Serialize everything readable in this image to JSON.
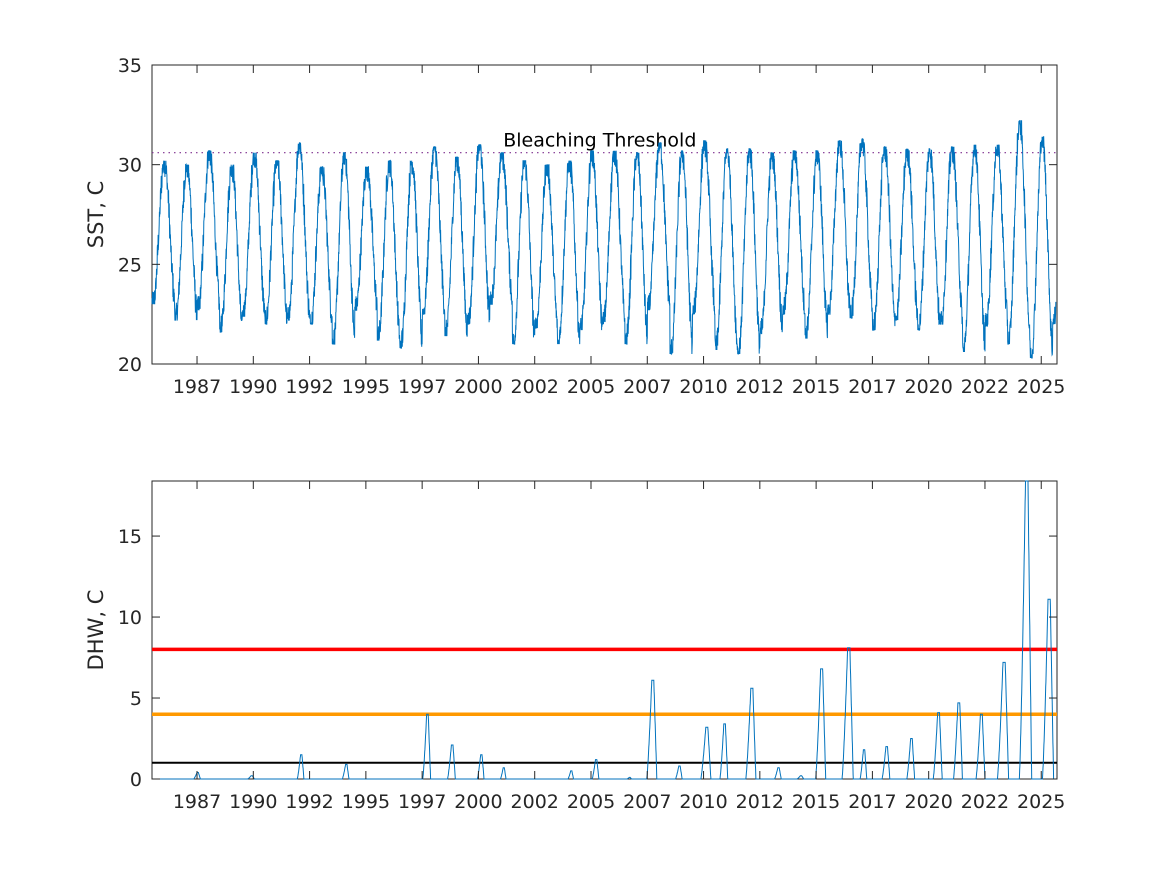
{
  "chart_data": [
    {
      "type": "line",
      "ylabel": "SST, C",
      "xlim": [
        1985.0,
        2025.2
      ],
      "ylim": [
        20,
        35
      ],
      "yticks": [
        20,
        25,
        30,
        35
      ],
      "xtick_labels": [
        "1987",
        "1990",
        "1992",
        "1995",
        "1997",
        "2000",
        "2002",
        "2005",
        "2007",
        "2010",
        "2012",
        "2015",
        "2017",
        "2020",
        "2022",
        "2025"
      ],
      "xtick_values": [
        1987.0,
        1989.5,
        1992.0,
        1994.5,
        1997.0,
        1999.5,
        2002.0,
        2004.5,
        2007.0,
        2009.5,
        2012.0,
        2014.5,
        2017.0,
        2019.5,
        2022.0,
        2024.5
      ],
      "line_color": "#0072BD",
      "threshold": {
        "value": 30.6,
        "label": "Bleaching Threshold",
        "style": "dotted",
        "color": "#7E2F8E"
      },
      "series": [
        {
          "annual_peaks": [
            {
              "year": 1985,
              "max": 30.2
            },
            {
              "year": 1986,
              "max": 30.0
            },
            {
              "year": 1987,
              "max": 30.7
            },
            {
              "year": 1988,
              "max": 30.0
            },
            {
              "year": 1989,
              "max": 30.6
            },
            {
              "year": 1990,
              "max": 30.2
            },
            {
              "year": 1991,
              "max": 31.1
            },
            {
              "year": 1992,
              "max": 29.9
            },
            {
              "year": 1993,
              "max": 30.6
            },
            {
              "year": 1994,
              "max": 29.9
            },
            {
              "year": 1995,
              "max": 30.2
            },
            {
              "year": 1996,
              "max": 30.2
            },
            {
              "year": 1997,
              "max": 30.9
            },
            {
              "year": 1998,
              "max": 30.4
            },
            {
              "year": 1999,
              "max": 31.0
            },
            {
              "year": 2000,
              "max": 30.6
            },
            {
              "year": 2001,
              "max": 30.2
            },
            {
              "year": 2002,
              "max": 30.0
            },
            {
              "year": 2003,
              "max": 30.2
            },
            {
              "year": 2004,
              "max": 30.7
            },
            {
              "year": 2005,
              "max": 30.7
            },
            {
              "year": 2006,
              "max": 30.6
            },
            {
              "year": 2007,
              "max": 31.1
            },
            {
              "year": 2008,
              "max": 30.7
            },
            {
              "year": 2009,
              "max": 31.2
            },
            {
              "year": 2010,
              "max": 30.8
            },
            {
              "year": 2011,
              "max": 30.8
            },
            {
              "year": 2012,
              "max": 30.6
            },
            {
              "year": 2013,
              "max": 30.7
            },
            {
              "year": 2014,
              "max": 30.7
            },
            {
              "year": 2015,
              "max": 31.2
            },
            {
              "year": 2016,
              "max": 31.3
            },
            {
              "year": 2017,
              "max": 30.9
            },
            {
              "year": 2018,
              "max": 30.8
            },
            {
              "year": 2019,
              "max": 30.8
            },
            {
              "year": 2020,
              "max": 30.9
            },
            {
              "year": 2021,
              "max": 31.0
            },
            {
              "year": 2022,
              "max": 31.0
            },
            {
              "year": 2023,
              "max": 32.2
            },
            {
              "year": 2024,
              "max": 31.4
            }
          ],
          "annual_troughs": [
            {
              "year": 1985,
              "min": 23.0
            },
            {
              "year": 1986,
              "min": 22.2
            },
            {
              "year": 1987,
              "min": 22.7
            },
            {
              "year": 1988,
              "min": 21.6
            },
            {
              "year": 1989,
              "min": 22.4
            },
            {
              "year": 1990,
              "min": 22.0
            },
            {
              "year": 1991,
              "min": 22.2
            },
            {
              "year": 1992,
              "min": 22.0
            },
            {
              "year": 1993,
              "min": 21.0
            },
            {
              "year": 1994,
              "min": 22.7
            },
            {
              "year": 1995,
              "min": 21.2
            },
            {
              "year": 1996,
              "min": 20.8
            },
            {
              "year": 1997,
              "min": 22.5
            },
            {
              "year": 1998,
              "min": 21.4
            },
            {
              "year": 1999,
              "min": 22.0
            },
            {
              "year": 2000,
              "min": 23.0
            },
            {
              "year": 2001,
              "min": 21.0
            },
            {
              "year": 2002,
              "min": 21.8
            },
            {
              "year": 2003,
              "min": 21.0
            },
            {
              "year": 2004,
              "min": 21.7
            },
            {
              "year": 2005,
              "min": 22.0
            },
            {
              "year": 2006,
              "min": 21.0
            },
            {
              "year": 2007,
              "min": 22.7
            },
            {
              "year": 2008,
              "min": 20.5
            },
            {
              "year": 2009,
              "min": 22.5
            },
            {
              "year": 2010,
              "min": 20.7
            },
            {
              "year": 2011,
              "min": 20.5
            },
            {
              "year": 2012,
              "min": 21.5
            },
            {
              "year": 2013,
              "min": 22.5
            },
            {
              "year": 2014,
              "min": 21.3
            },
            {
              "year": 2015,
              "min": 22.5
            },
            {
              "year": 2016,
              "min": 22.3
            },
            {
              "year": 2017,
              "min": 21.7
            },
            {
              "year": 2018,
              "min": 22.2
            },
            {
              "year": 2019,
              "min": 21.7
            },
            {
              "year": 2020,
              "min": 22.0
            },
            {
              "year": 2021,
              "min": 20.6
            },
            {
              "year": 2022,
              "min": 21.9
            },
            {
              "year": 2023,
              "min": 21.0
            },
            {
              "year": 2024,
              "min": 20.3
            }
          ]
        }
      ]
    },
    {
      "type": "line",
      "ylabel": "DHW, C",
      "xlim": [
        1985.0,
        2025.2
      ],
      "ylim": [
        0,
        18.4
      ],
      "yticks": [
        0,
        5,
        10,
        15
      ],
      "xtick_labels": [
        "1987",
        "1990",
        "1992",
        "1995",
        "1997",
        "2000",
        "2002",
        "2005",
        "2007",
        "2010",
        "2012",
        "2015",
        "2017",
        "2020",
        "2022",
        "2025"
      ],
      "xtick_values": [
        1987.0,
        1989.5,
        1992.0,
        1994.5,
        1997.0,
        1999.5,
        2002.0,
        2004.5,
        2007.0,
        2009.5,
        2012.0,
        2014.5,
        2017.0,
        2019.5,
        2022.0,
        2024.5
      ],
      "line_color": "#0072BD",
      "reference_lines": [
        {
          "value": 8,
          "color": "#FF0000"
        },
        {
          "value": 4,
          "color": "#FF9900"
        },
        {
          "value": 1,
          "color": "#000000"
        }
      ],
      "series": [
        {
          "events": [
            {
              "x": 1987.0,
              "peak": 0.4,
              "width": 0.3
            },
            {
              "x": 1989.4,
              "peak": 0.2,
              "width": 0.3
            },
            {
              "x": 1991.6,
              "peak": 1.5,
              "width": 0.3
            },
            {
              "x": 1993.6,
              "peak": 0.9,
              "width": 0.3
            },
            {
              "x": 1997.2,
              "peak": 4.0,
              "width": 0.35
            },
            {
              "x": 1998.3,
              "peak": 2.1,
              "width": 0.35
            },
            {
              "x": 1999.6,
              "peak": 1.5,
              "width": 0.3
            },
            {
              "x": 2000.6,
              "peak": 0.7,
              "width": 0.25
            },
            {
              "x": 2003.6,
              "peak": 0.5,
              "width": 0.25
            },
            {
              "x": 2004.7,
              "peak": 1.2,
              "width": 0.3
            },
            {
              "x": 2006.2,
              "peak": 0.1,
              "width": 0.2
            },
            {
              "x": 2007.2,
              "peak": 6.1,
              "width": 0.45
            },
            {
              "x": 2008.4,
              "peak": 0.8,
              "width": 0.3
            },
            {
              "x": 2009.6,
              "peak": 3.2,
              "width": 0.45
            },
            {
              "x": 2010.4,
              "peak": 3.4,
              "width": 0.35
            },
            {
              "x": 2011.6,
              "peak": 5.6,
              "width": 0.45
            },
            {
              "x": 2012.8,
              "peak": 0.7,
              "width": 0.3
            },
            {
              "x": 2013.8,
              "peak": 0.2,
              "width": 0.3
            },
            {
              "x": 2014.7,
              "peak": 6.8,
              "width": 0.45
            },
            {
              "x": 2015.9,
              "peak": 8.1,
              "width": 0.5
            },
            {
              "x": 2016.6,
              "peak": 1.8,
              "width": 0.3
            },
            {
              "x": 2017.6,
              "peak": 2.0,
              "width": 0.35
            },
            {
              "x": 2018.7,
              "peak": 2.5,
              "width": 0.35
            },
            {
              "x": 2019.9,
              "peak": 4.1,
              "width": 0.4
            },
            {
              "x": 2020.8,
              "peak": 4.7,
              "width": 0.4
            },
            {
              "x": 2021.8,
              "peak": 4.0,
              "width": 0.4
            },
            {
              "x": 2022.8,
              "peak": 7.2,
              "width": 0.5
            },
            {
              "x": 2023.8,
              "peak": 18.4,
              "width": 0.55
            },
            {
              "x": 2024.8,
              "peak": 11.1,
              "width": 0.5
            }
          ]
        }
      ]
    }
  ]
}
